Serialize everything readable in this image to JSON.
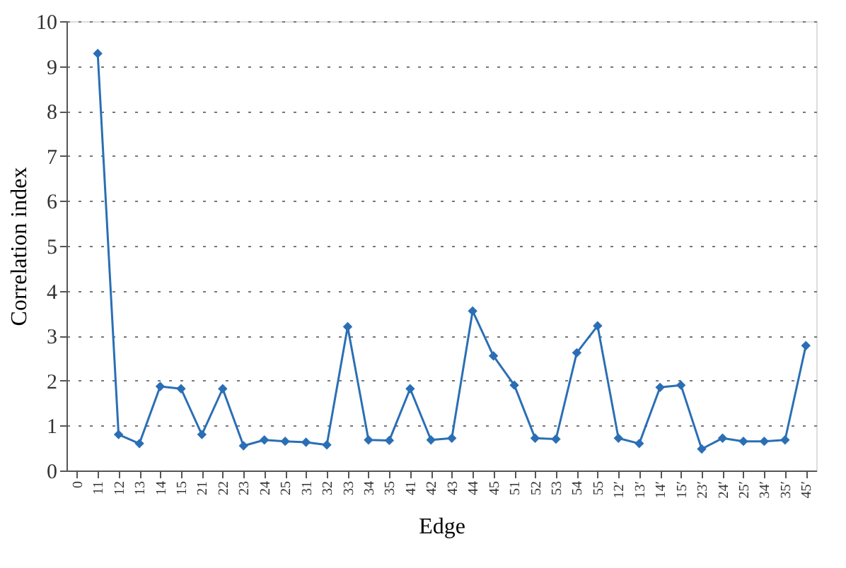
{
  "chart_data": {
    "type": "line",
    "xlabel": "Edge",
    "ylabel": "Correlation index",
    "categories": [
      "0",
      "11",
      "12",
      "13",
      "14",
      "15",
      "21",
      "22",
      "23",
      "24",
      "25",
      "31",
      "32",
      "33",
      "34",
      "35",
      "41",
      "42",
      "43",
      "44",
      "45",
      "51",
      "52",
      "53",
      "54",
      "55",
      "12′",
      "13′",
      "14′",
      "15′",
      "23′",
      "24′",
      "25′",
      "34′",
      "35′",
      "45′"
    ],
    "series": [
      {
        "color": "#2a6fb5",
        "values": [
          null,
          9.28,
          0.8,
          0.6,
          1.87,
          1.82,
          0.8,
          1.82,
          0.55,
          0.68,
          0.65,
          0.63,
          0.57,
          3.2,
          0.68,
          0.67,
          1.82,
          0.68,
          0.72,
          3.55,
          2.55,
          1.9,
          0.72,
          0.7,
          2.62,
          3.22,
          0.72,
          0.6,
          1.85,
          1.9,
          0.48,
          0.72,
          0.65,
          0.65,
          0.68,
          2.78
        ]
      }
    ],
    "ylim": [
      0,
      10
    ],
    "yticks": [
      0,
      1,
      2,
      3,
      4,
      5,
      6,
      7,
      8,
      9,
      10
    ],
    "grid": "y",
    "marker": "diamond",
    "line_style": "solid"
  }
}
